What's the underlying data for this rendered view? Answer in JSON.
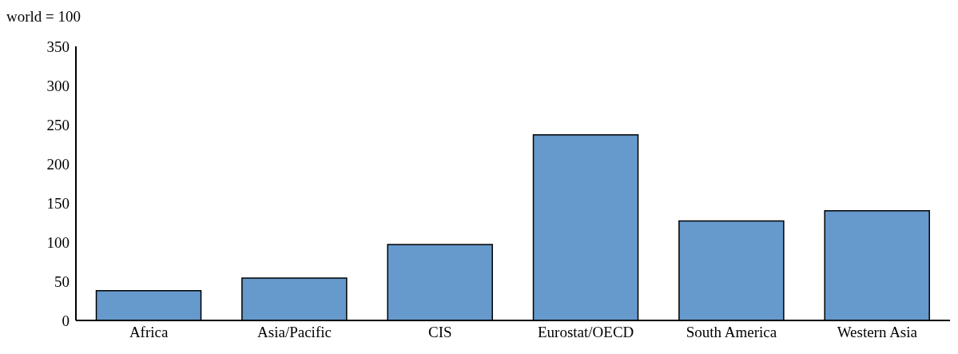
{
  "chart_data": {
    "type": "bar",
    "ylabel": "world = 100",
    "categories": [
      "Africa",
      "Asia/Pacific",
      "CIS",
      "Eurostat/OECD",
      "South America",
      "Western Asia"
    ],
    "values": [
      38,
      54,
      97,
      237,
      127,
      140
    ],
    "color": "#6699cc",
    "ylim": [
      0,
      350
    ],
    "yticks": [
      0,
      50,
      100,
      150,
      200,
      250,
      300,
      350
    ],
    "grid": false,
    "legend": false
  }
}
